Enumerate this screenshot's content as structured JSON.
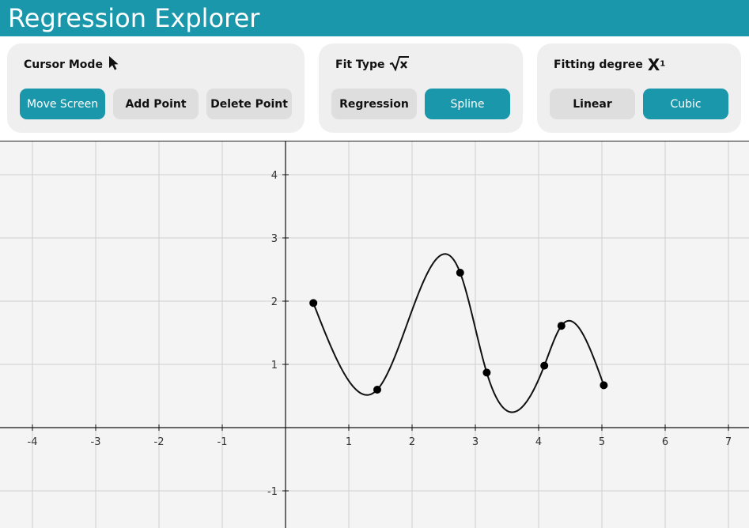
{
  "app": {
    "title": "Regression Explorer"
  },
  "colors": {
    "accent": "#1a97aa",
    "panel_bg": "#efefef",
    "button_inactive": "#dedede",
    "plot_bg": "#f4f4f4",
    "grid": "#d0d0d0"
  },
  "cursor_mode": {
    "label": "Cursor Mode",
    "icon": "cursor-arrow-icon",
    "buttons": [
      {
        "label": "Move Screen",
        "active": true
      },
      {
        "label": "Add Point",
        "active": false
      },
      {
        "label": "Delete Point",
        "active": false
      }
    ]
  },
  "fit_type": {
    "label": "Fit Type",
    "icon": "sqrt-x-icon",
    "buttons": [
      {
        "label": "Regression",
        "active": false
      },
      {
        "label": "Spline",
        "active": true
      }
    ]
  },
  "fitting_degree": {
    "label": "Fitting degree",
    "icon": "x-superscript-icon",
    "icon_sup": "1",
    "icon_base": "X",
    "buttons": [
      {
        "label": "Linear",
        "active": false
      },
      {
        "label": "Cubic",
        "active": true
      }
    ]
  },
  "chart_data": {
    "type": "scatter",
    "fit": "cubic spline",
    "x_ticks": [
      "-4",
      "-3",
      "-2",
      "-1",
      "1",
      "2",
      "3",
      "4",
      "5",
      "6",
      "7"
    ],
    "y_ticks": [
      "-1",
      "1",
      "2",
      "3",
      "4"
    ],
    "xlim": [
      -4.5,
      7.35
    ],
    "ylim": [
      -1.6,
      4.5
    ],
    "grid": true,
    "points": [
      {
        "x": 0.44,
        "y": 1.97
      },
      {
        "x": 1.45,
        "y": 0.6
      },
      {
        "x": 2.76,
        "y": 2.45
      },
      {
        "x": 3.18,
        "y": 0.87
      },
      {
        "x": 4.09,
        "y": 0.98
      },
      {
        "x": 4.36,
        "y": 1.61
      },
      {
        "x": 5.03,
        "y": 0.67
      }
    ]
  }
}
